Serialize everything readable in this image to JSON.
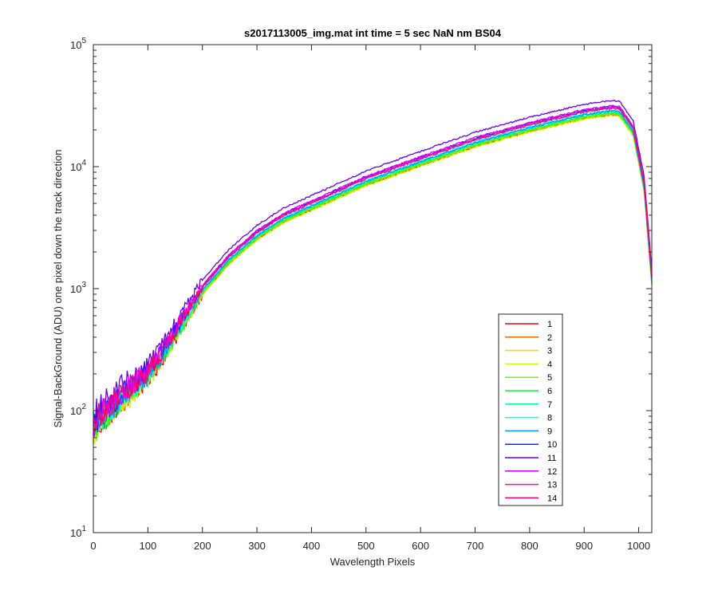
{
  "chart_data": {
    "type": "line",
    "title": "s2017113005_img.mat int time = 5 sec  NaN nm BS04",
    "xlabel": "Wavelength Pixels",
    "ylabel": "Signal-BackGround (ADU) one pixel down the track direction",
    "xlim": [
      0,
      1024
    ],
    "ylim": [
      10,
      100000
    ],
    "yscale": "log",
    "grid": false,
    "legend_location": "lower-right",
    "x_ticks": [
      "0",
      "100",
      "200",
      "300",
      "400",
      "500",
      "600",
      "700",
      "800",
      "900",
      "1000"
    ],
    "y_ticks": [
      {
        "base": "10",
        "exp": "1"
      },
      {
        "base": "10",
        "exp": "2"
      },
      {
        "base": "10",
        "exp": "3"
      },
      {
        "base": "10",
        "exp": "4"
      },
      {
        "base": "10",
        "exp": "5"
      }
    ],
    "x": [
      0,
      20,
      50,
      100,
      150,
      200,
      250,
      300,
      350,
      400,
      500,
      600,
      700,
      800,
      900,
      950,
      965,
      990,
      1010,
      1024
    ],
    "profile": [
      75,
      95,
      130,
      200,
      430,
      1000,
      1800,
      2800,
      3900,
      4900,
      7800,
      11300,
      16200,
      21500,
      27500,
      29500,
      29000,
      20000,
      7000,
      1200
    ],
    "series": [
      {
        "name": "1",
        "color": "#ff0000",
        "scale": 0.9
      },
      {
        "name": "2",
        "color": "#ff6a00",
        "scale": 0.91
      },
      {
        "name": "3",
        "color": "#ffd000",
        "scale": 0.93
      },
      {
        "name": "4",
        "color": "#c8ff00",
        "scale": 0.89
      },
      {
        "name": "5",
        "color": "#66ff00",
        "scale": 0.92
      },
      {
        "name": "6",
        "color": "#00ff30",
        "scale": 0.94
      },
      {
        "name": "7",
        "color": "#00ff9a",
        "scale": 0.96
      },
      {
        "name": "8",
        "color": "#00ffff",
        "scale": 0.99
      },
      {
        "name": "9",
        "color": "#0095ff",
        "scale": 0.97
      },
      {
        "name": "10",
        "color": "#0030ff",
        "scale": 1.05
      },
      {
        "name": "11",
        "color": "#6600ff",
        "scale": 1.18
      },
      {
        "name": "12",
        "color": "#cc00ff",
        "scale": 1.07
      },
      {
        "name": "13",
        "color": "#ff00cc",
        "scale": 1.04
      },
      {
        "name": "14",
        "color": "#ff0066",
        "scale": 1.02
      }
    ]
  }
}
